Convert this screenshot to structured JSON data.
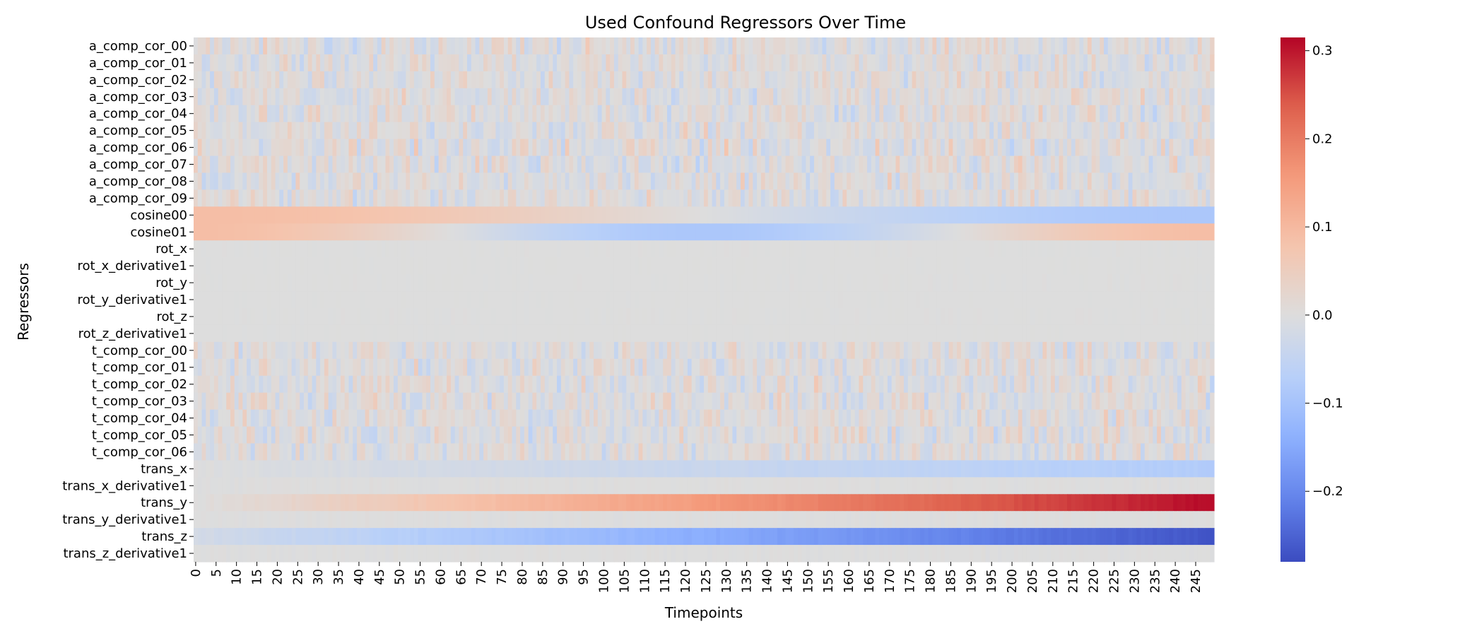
{
  "chart_data": {
    "type": "heatmap",
    "title": "Used Confound Regressors Over Time",
    "xlabel": "Timepoints",
    "ylabel": "Regressors",
    "x_tick_labels": [
      "0",
      "5",
      "10",
      "15",
      "20",
      "25",
      "30",
      "35",
      "40",
      "45",
      "50",
      "55",
      "60",
      "65",
      "70",
      "75",
      "80",
      "85",
      "90",
      "95",
      "100",
      "105",
      "110",
      "115",
      "120",
      "125",
      "130",
      "135",
      "140",
      "145",
      "150",
      "155",
      "160",
      "165",
      "170",
      "175",
      "180",
      "185",
      "190",
      "195",
      "200",
      "205",
      "210",
      "215",
      "220",
      "225",
      "230",
      "235",
      "240",
      "245"
    ],
    "n_timepoints": 250,
    "rows": [
      "a_comp_cor_00",
      "a_comp_cor_01",
      "a_comp_cor_02",
      "a_comp_cor_03",
      "a_comp_cor_04",
      "a_comp_cor_05",
      "a_comp_cor_06",
      "a_comp_cor_07",
      "a_comp_cor_08",
      "a_comp_cor_09",
      "cosine00",
      "cosine01",
      "rot_x",
      "rot_x_derivative1",
      "rot_y",
      "rot_y_derivative1",
      "rot_z",
      "rot_z_derivative1",
      "t_comp_cor_00",
      "t_comp_cor_01",
      "t_comp_cor_02",
      "t_comp_cor_03",
      "t_comp_cor_04",
      "t_comp_cor_05",
      "t_comp_cor_06",
      "trans_x",
      "trans_x_derivative1",
      "trans_y",
      "trans_y_derivative1",
      "trans_z",
      "trans_z_derivative1"
    ],
    "row_profiles": {
      "a_comp_cor_00": {
        "kind": "noise",
        "amplitude": 0.07,
        "seed": 1
      },
      "a_comp_cor_01": {
        "kind": "noise",
        "amplitude": 0.065,
        "seed": 2
      },
      "a_comp_cor_02": {
        "kind": "noise",
        "amplitude": 0.07,
        "seed": 3
      },
      "a_comp_cor_03": {
        "kind": "noise",
        "amplitude": 0.07,
        "seed": 4
      },
      "a_comp_cor_04": {
        "kind": "noise",
        "amplitude": 0.07,
        "seed": 5
      },
      "a_comp_cor_05": {
        "kind": "noise",
        "amplitude": 0.07,
        "seed": 6
      },
      "a_comp_cor_06": {
        "kind": "noise",
        "amplitude": 0.08,
        "seed": 7
      },
      "a_comp_cor_07": {
        "kind": "noise",
        "amplitude": 0.08,
        "seed": 8
      },
      "a_comp_cor_08": {
        "kind": "noise",
        "amplitude": 0.07,
        "seed": 9
      },
      "a_comp_cor_09": {
        "kind": "noise",
        "amplitude": 0.07,
        "seed": 10
      },
      "cosine00": {
        "kind": "cosine",
        "amplitude": 0.09,
        "cycles": 0.5
      },
      "cosine01": {
        "kind": "cosine",
        "amplitude": 0.09,
        "cycles": 1.0
      },
      "rot_x": {
        "kind": "noise",
        "amplitude": 0.003,
        "seed": 11
      },
      "rot_x_derivative1": {
        "kind": "noise",
        "amplitude": 0.002,
        "seed": 12
      },
      "rot_y": {
        "kind": "noise",
        "amplitude": 0.003,
        "seed": 13
      },
      "rot_y_derivative1": {
        "kind": "noise",
        "amplitude": 0.002,
        "seed": 14
      },
      "rot_z": {
        "kind": "noise",
        "amplitude": 0.003,
        "seed": 15
      },
      "rot_z_derivative1": {
        "kind": "noise",
        "amplitude": 0.002,
        "seed": 16
      },
      "t_comp_cor_00": {
        "kind": "noise",
        "amplitude": 0.065,
        "seed": 17
      },
      "t_comp_cor_01": {
        "kind": "noise",
        "amplitude": 0.065,
        "seed": 18
      },
      "t_comp_cor_02": {
        "kind": "noise",
        "amplitude": 0.075,
        "seed": 19
      },
      "t_comp_cor_03": {
        "kind": "noise",
        "amplitude": 0.07,
        "seed": 20
      },
      "t_comp_cor_04": {
        "kind": "noise",
        "amplitude": 0.07,
        "seed": 21
      },
      "t_comp_cor_05": {
        "kind": "noise",
        "amplitude": 0.07,
        "seed": 22
      },
      "t_comp_cor_06": {
        "kind": "noise",
        "amplitude": 0.07,
        "seed": 23
      },
      "trans_x": {
        "kind": "linear",
        "start": 0.0,
        "end": -0.08
      },
      "trans_x_derivative1": {
        "kind": "noise",
        "amplitude": 0.006,
        "seed": 24
      },
      "trans_y": {
        "kind": "linear",
        "start": 0.0,
        "end": 0.31
      },
      "trans_y_derivative1": {
        "kind": "noise",
        "amplitude": 0.006,
        "seed": 25
      },
      "trans_z": {
        "kind": "linear",
        "start": -0.02,
        "end": -0.27
      },
      "trans_z_derivative1": {
        "kind": "noise",
        "amplitude": 0.006,
        "seed": 26
      }
    },
    "colorbar": {
      "colormap": "coolwarm",
      "vmin": -0.28,
      "vmax": 0.315,
      "ticks": [
        -0.2,
        -0.1,
        0.0,
        0.1,
        0.2,
        0.3
      ],
      "tick_labels": [
        "−0.2",
        "−0.1",
        "0.0",
        "0.1",
        "0.2",
        "0.3"
      ]
    }
  }
}
